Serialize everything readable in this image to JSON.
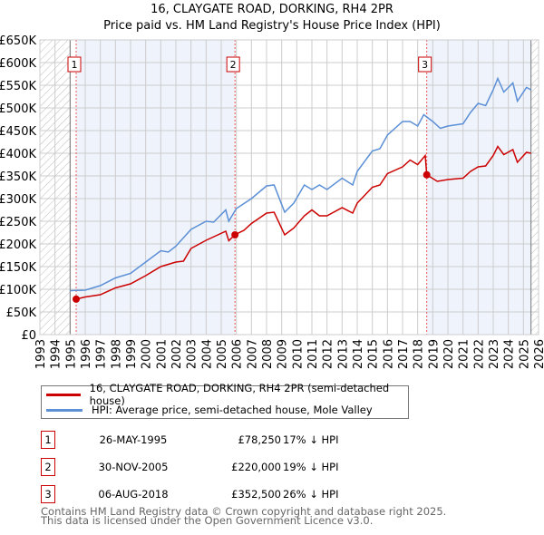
{
  "chart_data": {
    "type": "line",
    "title": "16, CLAYGATE ROAD, DORKING, RH4 2PR",
    "subtitle": "Price paid vs. HM Land Registry's House Price Index (HPI)",
    "xlim": [
      1993,
      2026
    ],
    "ylim": [
      0,
      650000
    ],
    "x_ticks": [
      "1993",
      "1994",
      "1995",
      "1996",
      "1997",
      "1998",
      "1999",
      "2000",
      "2001",
      "2002",
      "2003",
      "2004",
      "2005",
      "2006",
      "2007",
      "2008",
      "2009",
      "2010",
      "2011",
      "2012",
      "2013",
      "2014",
      "2015",
      "2016",
      "2017",
      "2018",
      "2019",
      "2020",
      "2021",
      "2022",
      "2023",
      "2024",
      "2025",
      "2026"
    ],
    "y_ticks": [
      {
        "v": 0,
        "label": "£0"
      },
      {
        "v": 50000,
        "label": "£50K"
      },
      {
        "v": 100000,
        "label": "£100K"
      },
      {
        "v": 150000,
        "label": "£150K"
      },
      {
        "v": 200000,
        "label": "£200K"
      },
      {
        "v": 250000,
        "label": "£250K"
      },
      {
        "v": 300000,
        "label": "£300K"
      },
      {
        "v": 350000,
        "label": "£350K"
      },
      {
        "v": 400000,
        "label": "£400K"
      },
      {
        "v": 450000,
        "label": "£450K"
      },
      {
        "v": 500000,
        "label": "£500K"
      },
      {
        "v": 550000,
        "label": "£550K"
      },
      {
        "v": 600000,
        "label": "£600K"
      },
      {
        "v": 650000,
        "label": "£650K"
      }
    ],
    "grid": true,
    "shaded_periods": [
      [
        1995.4,
        2005.9
      ],
      [
        2018.6,
        2025.5
      ]
    ],
    "hatched_periods": [
      [
        1993,
        1995.0
      ],
      [
        2025.5,
        2026
      ]
    ],
    "series": [
      {
        "name": "16, CLAYGATE ROAD, DORKING, RH4 2PR (semi-detached house)",
        "color": "#cc0000",
        "x": [
          1995.4,
          1996,
          1997,
          1998,
          1999,
          2000,
          2001,
          2002,
          2002.5,
          2003,
          2004,
          2005.3,
          2005.5,
          2005.9,
          2006.5,
          2007,
          2008,
          2008.5,
          2009.2,
          2009.8,
          2010.5,
          2011,
          2011.5,
          2012,
          2013,
          2013.7,
          2014,
          2015,
          2015.5,
          2016,
          2017,
          2017.5,
          2018,
          2018.5,
          2018.6,
          2019.3,
          2020,
          2021,
          2021.5,
          2022,
          2022.5,
          2023,
          2023.3,
          2023.7,
          2024.3,
          2024.6,
          2025.2,
          2025.5
        ],
        "y": [
          78250,
          83000,
          88000,
          103000,
          112000,
          130000,
          150000,
          160000,
          162000,
          190000,
          208000,
          228000,
          207000,
          220000,
          230000,
          245000,
          268000,
          270000,
          220000,
          235000,
          262000,
          275000,
          262000,
          262000,
          280000,
          268000,
          290000,
          325000,
          330000,
          355000,
          370000,
          385000,
          375000,
          395000,
          352500,
          338000,
          342000,
          345000,
          360000,
          370000,
          372000,
          395000,
          415000,
          397000,
          408000,
          380000,
          402000,
          400000
        ]
      },
      {
        "name": "HPI: Average price, semi-detached house, Mole Valley",
        "color": "#5b8fd6",
        "x": [
          1995,
          1996,
          1997,
          1998,
          1999,
          2000,
          2001,
          2001.5,
          2002,
          2003,
          2004,
          2004.5,
          2005.3,
          2005.5,
          2006,
          2007,
          2008,
          2008.5,
          2009.2,
          2009.8,
          2010.5,
          2011,
          2011.5,
          2012,
          2013,
          2013.7,
          2014,
          2015,
          2015.5,
          2016,
          2017,
          2017.5,
          2018,
          2018.4,
          2019,
          2019.5,
          2020,
          2021,
          2021.5,
          2022,
          2022.5,
          2023,
          2023.3,
          2023.7,
          2024.3,
          2024.6,
          2025.2,
          2025.5
        ],
        "y": [
          97000,
          98000,
          108000,
          125000,
          135000,
          160000,
          185000,
          182000,
          195000,
          232000,
          250000,
          248000,
          275000,
          250000,
          278000,
          300000,
          328000,
          330000,
          270000,
          290000,
          330000,
          320000,
          330000,
          320000,
          345000,
          330000,
          360000,
          405000,
          410000,
          440000,
          470000,
          470000,
          460000,
          485000,
          470000,
          455000,
          460000,
          465000,
          490000,
          510000,
          505000,
          540000,
          565000,
          535000,
          555000,
          515000,
          545000,
          540000
        ]
      }
    ],
    "sales": [
      {
        "n": "1",
        "x": 1995.4,
        "date": "26-MAY-1995",
        "price": "£78,250",
        "value": 78250,
        "delta": "17% ↓ HPI"
      },
      {
        "n": "2",
        "x": 2005.91,
        "date": "30-NOV-2005",
        "price": "£220,000",
        "value": 220000,
        "delta": "19% ↓ HPI"
      },
      {
        "n": "3",
        "x": 2018.6,
        "date": "06-AUG-2018",
        "price": "£352,500",
        "value": 352500,
        "delta": "26% ↓ HPI"
      }
    ],
    "legend_position": "below"
  },
  "footer": [
    "Contains HM Land Registry data © Crown copyright and database right 2025.",
    "This data is licensed under the Open Government Licence v3.0."
  ]
}
